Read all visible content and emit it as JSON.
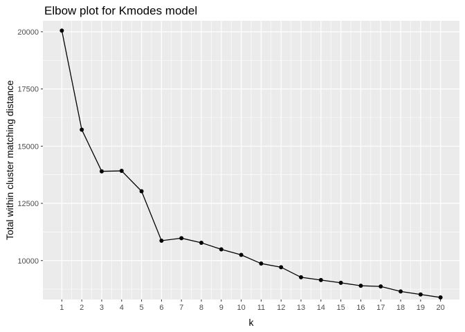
{
  "chart_data": {
    "type": "line",
    "title": "Elbow plot for Kmodes model",
    "xlabel": "k",
    "ylabel": "Total within cluster matching distance",
    "x": [
      1,
      2,
      3,
      4,
      5,
      6,
      7,
      8,
      9,
      10,
      11,
      12,
      13,
      14,
      15,
      16,
      17,
      18,
      19,
      20
    ],
    "values": [
      20050,
      15720,
      13900,
      13920,
      13030,
      10870,
      10980,
      10780,
      10490,
      10250,
      9870,
      9710,
      9270,
      9150,
      9030,
      8900,
      8870,
      8650,
      8520,
      8390
    ],
    "xlim": [
      0.05,
      20.95
    ],
    "ylim": [
      8300,
      20480
    ],
    "xticks": [
      "1",
      "2",
      "3",
      "4",
      "5",
      "6",
      "7",
      "8",
      "9",
      "10",
      "11",
      "12",
      "13",
      "14",
      "15",
      "16",
      "17",
      "18",
      "19",
      "20"
    ],
    "yticks": [
      10000,
      12500,
      15000,
      17500,
      20000
    ],
    "ytick_labels": [
      "10000",
      "12500",
      "15000",
      "17500",
      "20000"
    ],
    "grid": true,
    "legend": "none",
    "colors": {
      "panel": "#ebebeb",
      "grid": "#ffffff",
      "line": "#000000",
      "point": "#000000",
      "tick_label": "#4d4d4d",
      "tick": "#333333"
    }
  }
}
